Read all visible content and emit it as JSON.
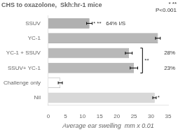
{
  "chart_data": {
    "type": "bar",
    "orientation": "horizontal",
    "title": "CHS to oxazolone,  Skh:hr-1 mice",
    "xlabel": "Average ear swelling  mm x 0.01",
    "categories": [
      "SSUV",
      "YC-1",
      "YC-1 + SSUV",
      "SSUV+ YC-1",
      "Challenge only",
      "Nil"
    ],
    "values": [
      12.0,
      32.0,
      23.5,
      25.0,
      3.5,
      31.0
    ],
    "errors": [
      0.8,
      0.7,
      1.0,
      1.1,
      0.6,
      0.5
    ],
    "colors": [
      "#b0b0b0",
      "#b8b8b8",
      "#b8b8b8",
      "#b8b8b8",
      "#ffffff",
      "#d8d8d8"
    ],
    "xlim": [
      0,
      35
    ],
    "xticks": [
      0,
      5,
      10,
      15,
      20,
      25,
      30,
      35
    ],
    "grid": false,
    "annotations": [
      {
        "text": "* **   64% I/S",
        "category": "SSUV",
        "x": 13.1
      },
      {
        "text": "* **\nP<0.001"
      },
      {
        "text": "**",
        "bracket": [
          "YC-1 + SSUV",
          "SSUV+ YC-1"
        ],
        "x": 27.5
      },
      {
        "text": "28%",
        "category": "YC-1 + SSUV",
        "x": 33.8
      },
      {
        "text": "23%",
        "category": "SSUV+ YC-1",
        "x": 33.8
      },
      {
        "text": "*",
        "category": "Nil",
        "x": 31.9
      }
    ]
  }
}
